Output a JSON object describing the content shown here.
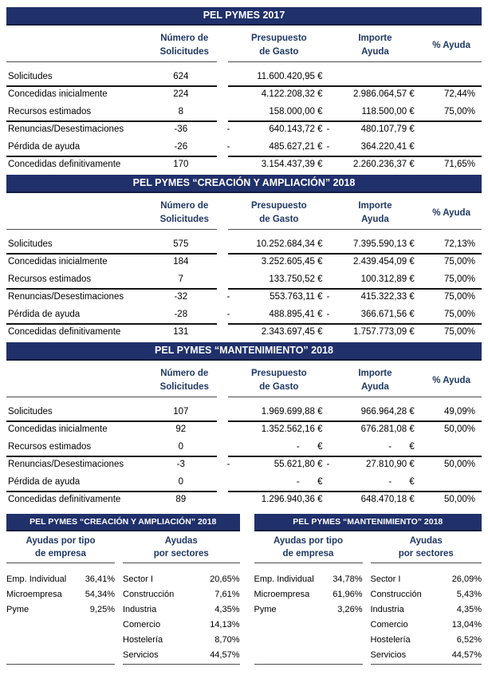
{
  "colors": {
    "bar_bg": "#20306b",
    "bar_text": "#ffffff",
    "header_text": "#1f3864",
    "thin_line": "#4d4d4d",
    "thick_line": "#141414"
  },
  "main_headers": {
    "num": [
      "Número de",
      "Solicitudes"
    ],
    "pres": [
      "Presupuesto",
      "de Gasto"
    ],
    "imp": [
      "Importe",
      "Ayuda"
    ],
    "pct": "% Ayuda"
  },
  "main_tables": [
    {
      "title": "PEL PYMES 2017",
      "rows": [
        {
          "label": "Solicitudes",
          "num": "624",
          "pres_m": "",
          "pres": "11.600.420,95 €",
          "imp_m": "",
          "imp": "",
          "pct": "",
          "sep": "thick"
        },
        {
          "label": "Concedidas inicialmente",
          "num": "224",
          "pres_m": "",
          "pres": "4.122.208,32 €",
          "imp_m": "",
          "imp": "2.986.064,57 €",
          "pct": "72,44%",
          "sep": ""
        },
        {
          "label": "Recursos estimados",
          "num": "8",
          "pres_m": "",
          "pres": "158.000,00 €",
          "imp_m": "",
          "imp": "118.500,00 €",
          "pct": "75,00%",
          "sep": "thick"
        },
        {
          "label": "Renuncias/Desestimaciones",
          "num": "-36",
          "pres_m": "-",
          "pres": "640.143,72 €",
          "imp_m": "-",
          "imp": "480.107,79 €",
          "pct": "",
          "sep": ""
        },
        {
          "label": "Pérdida de ayuda",
          "num": "-26",
          "pres_m": "-",
          "pres": "485.627,21 €",
          "imp_m": "-",
          "imp": "364.220,41 €",
          "pct": "",
          "sep": "thick"
        },
        {
          "label": "Concedidas definitivamente",
          "num": "170",
          "pres_m": "",
          "pres": "3.154.437,39 €",
          "imp_m": "",
          "imp": "2.260.236,37 €",
          "pct": "71,65%",
          "sep": ""
        }
      ]
    },
    {
      "title": "PEL PYMES “CREACIÓN Y AMPLIACIÓN” 2018",
      "rows": [
        {
          "label": "Solicitudes",
          "num": "575",
          "pres_m": "",
          "pres": "10.252.684,34 €",
          "imp_m": "",
          "imp": "7.395.590,13 €",
          "pct": "72,13%",
          "sep": "thick"
        },
        {
          "label": "Concedidas inicialmente",
          "num": "184",
          "pres_m": "",
          "pres": "3.252.605,45 €",
          "imp_m": "",
          "imp": "2.439.454,09 €",
          "pct": "75,00%",
          "sep": ""
        },
        {
          "label": "Recursos estimados",
          "num": "7",
          "pres_m": "",
          "pres": "133.750,52 €",
          "imp_m": "",
          "imp": "100.312,89 €",
          "pct": "75,00%",
          "sep": "thick"
        },
        {
          "label": "Renuncias/Desestimaciones",
          "num": "-32",
          "pres_m": "-",
          "pres": "553.763,11 €",
          "imp_m": "-",
          "imp": "415.322,33 €",
          "pct": "75,00%",
          "sep": ""
        },
        {
          "label": "Pérdida de ayuda",
          "num": "-28",
          "pres_m": "-",
          "pres": "488.895,41 €",
          "imp_m": "-",
          "imp": "366.671,56 €",
          "pct": "75,00%",
          "sep": "thick"
        },
        {
          "label": "Concedidas definitivamente",
          "num": "131",
          "pres_m": "",
          "pres": "2.343.697,45 €",
          "imp_m": "",
          "imp": "1.757.773,09 €",
          "pct": "75,00%",
          "sep": ""
        }
      ]
    },
    {
      "title": "PEL PYMES “MANTENIMIENTO” 2018",
      "rows": [
        {
          "label": "Solicitudes",
          "num": "107",
          "pres_m": "",
          "pres": "1.969.699,88 €",
          "imp_m": "",
          "imp": "966.964,28 €",
          "pct": "49,09%",
          "sep": "thick"
        },
        {
          "label": "Concedidas inicialmente",
          "num": "92",
          "pres_m": "",
          "pres": "1.352.562,16 €",
          "imp_m": "",
          "imp": "676.281,08 €",
          "pct": "50,00%",
          "sep": ""
        },
        {
          "label": "Recursos estimados",
          "num": "0",
          "pres_m": "",
          "pres": "-       €",
          "imp_m": "",
          "imp": "-       €",
          "pct": "",
          "sep": "thick"
        },
        {
          "label": "Renuncias/Desestimaciones",
          "num": "-3",
          "pres_m": "-",
          "pres": "55.621,80 €",
          "imp_m": "-",
          "imp": "27.810,90 €",
          "pct": "50,00%",
          "sep": ""
        },
        {
          "label": "Pérdida de ayuda",
          "num": "0",
          "pres_m": "",
          "pres": "-       €",
          "imp_m": "",
          "imp": "-       €",
          "pct": "",
          "sep": "thick"
        },
        {
          "label": "Concedidas definitivamente",
          "num": "89",
          "pres_m": "",
          "pres": "1.296.940,36 €",
          "imp_m": "",
          "imp": "648.470,18 €",
          "pct": "50,00%",
          "sep": ""
        }
      ]
    }
  ],
  "bottom_tables": [
    {
      "title": "PEL PYMES “CREACIÓN Y AMPLIACIÓN” 2018",
      "empresa_header": [
        "Ayudas por tipo",
        "de empresa"
      ],
      "sectores_header": [
        "Ayudas",
        "por sectores"
      ],
      "empresa_rows": [
        {
          "label": "Emp. Individual",
          "value": "36,41%"
        },
        {
          "label": "Microempresa",
          "value": "54,34%"
        },
        {
          "label": "Pyme",
          "value": "9,25%"
        }
      ],
      "sectores_rows": [
        {
          "label": "Sector I",
          "value": "20,65%"
        },
        {
          "label": "Construcción",
          "value": "7,61%"
        },
        {
          "label": "Industria",
          "value": "4,35%"
        },
        {
          "label": "Comercio",
          "value": "14,13%"
        },
        {
          "label": "Hostelería",
          "value": "8,70%"
        },
        {
          "label": "Servicios",
          "value": "44,57%"
        }
      ]
    },
    {
      "title": "PEL PYMES “MANTENIMIENTO” 2018",
      "empresa_header": [
        "Ayudas por tipo",
        "de empresa"
      ],
      "sectores_header": [
        "Ayudas",
        "por sectores"
      ],
      "empresa_rows": [
        {
          "label": "Emp. Individual",
          "value": "34,78%"
        },
        {
          "label": "Microempresa",
          "value": "61,96%"
        },
        {
          "label": "Pyme",
          "value": "3,26%"
        }
      ],
      "sectores_rows": [
        {
          "label": "Sector I",
          "value": "26,09%"
        },
        {
          "label": "Construcción",
          "value": "5,43%"
        },
        {
          "label": "Industria",
          "value": "4,35%"
        },
        {
          "label": "Comercio",
          "value": "13,04%"
        },
        {
          "label": "Hostelería",
          "value": "6,52%"
        },
        {
          "label": "Servicios",
          "value": "44,57%"
        }
      ]
    }
  ]
}
